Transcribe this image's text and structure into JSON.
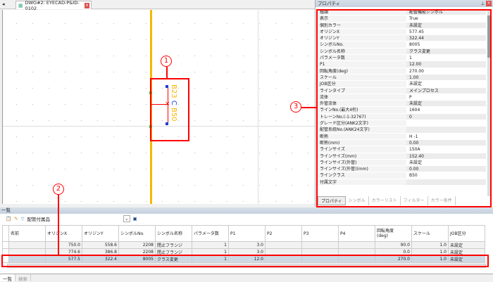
{
  "document_tab": {
    "title": "DWG#2: EYECAD-P&ID-0102",
    "close": "x"
  },
  "symbol": {
    "top_text": "B23",
    "mid_text": "C",
    "bottom_text": "B50"
  },
  "properties": {
    "title": "プロパティ",
    "rows": [
      {
        "k": "種類",
        "v": "配管機能シンボル"
      },
      {
        "k": "表示",
        "v": "True"
      },
      {
        "k": "個別カラー",
        "v": "未設定"
      },
      {
        "k": "オリジンX",
        "v": "577.45"
      },
      {
        "k": "オリジンY",
        "v": "322.44"
      },
      {
        "k": "シンボルNo.",
        "v": "8005"
      },
      {
        "k": "シンボル名称",
        "v": "クラス変更"
      },
      {
        "k": "パラメータ数",
        "v": "1"
      },
      {
        "k": "P1",
        "v": "12.00"
      },
      {
        "k": "回転角度(deg)",
        "v": "270.00"
      },
      {
        "k": "スケール",
        "v": "1.00"
      },
      {
        "k": "JOB区分",
        "v": "未設定"
      },
      {
        "k": "ラインタイプ",
        "v": "メインプロセス"
      },
      {
        "k": "流体",
        "v": "P"
      },
      {
        "k": "外管流体",
        "v": "未設定"
      },
      {
        "k": "ラインNo.(最大4桁)",
        "v": "1604"
      },
      {
        "k": "トレーンNo.(-1-32767)",
        "v": "0"
      },
      {
        "k": "グレード区分(ANK2文字)",
        "v": ""
      },
      {
        "k": "配管系統No.(ANK24文字)",
        "v": ""
      },
      {
        "k": "断熱",
        "v": "H -1"
      },
      {
        "k": "断熱(mm)",
        "v": "0.00"
      },
      {
        "k": "ラインサイズ",
        "v": "150A"
      },
      {
        "k": "ラインサイズ(mm)",
        "v": "152.40"
      },
      {
        "k": "ラインサイズ(外管)",
        "v": "未設定"
      },
      {
        "k": "ラインサイズ(外管)(mm)",
        "v": "0.00"
      },
      {
        "k": "ラインクラス",
        "v": "B50"
      },
      {
        "k": "付属文字",
        "v": ""
      }
    ],
    "tabs": [
      "プロパティ",
      "シンボル",
      "カラーリスト",
      "フィルター",
      "カラー条件"
    ]
  },
  "list": {
    "title": "一覧",
    "filter_label": "配管付属品",
    "columns": [
      "名前",
      "オリジンX",
      "オリジンY",
      "シンボルNo.",
      "シンボル名称",
      "パラメータ数",
      "P1",
      "P2",
      "P3",
      "P4",
      "回転角度\n(deg)",
      "スケール",
      "JOB区分"
    ],
    "rows": [
      [
        "",
        "750.0",
        "558.6",
        "2208",
        "閉止フランジ",
        "1",
        "3.0",
        "",
        "",
        "",
        "90.0",
        "1.0",
        "未設定"
      ],
      [
        "",
        "774.6",
        "386.8",
        "2208",
        "閉止フランジ",
        "1",
        "3.0",
        "",
        "",
        "",
        "0.0",
        "1.0",
        "未設定"
      ],
      [
        "",
        "577.5",
        "322.4",
        "8005",
        "クラス変更",
        "1",
        "12.0",
        "",
        "",
        "",
        "270.0",
        "1.0",
        "未設定"
      ]
    ],
    "selected_row": 2
  },
  "bottom_tabs": [
    "一覧",
    "検索"
  ],
  "annotations": [
    "1",
    "2",
    "3"
  ],
  "colors": {
    "highlight": "#ff0000",
    "pipe": "#f5b800",
    "selection": "#cfd9e4"
  }
}
